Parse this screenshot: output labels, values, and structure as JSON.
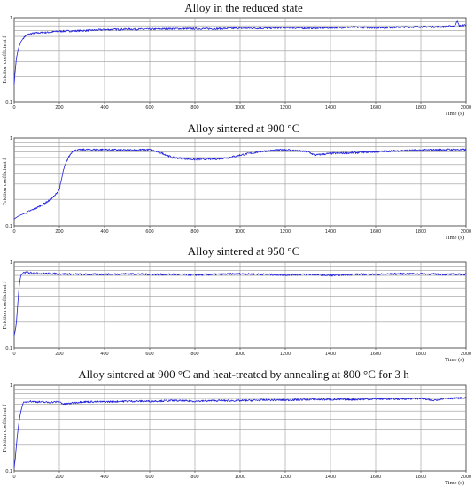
{
  "chart_data": [
    {
      "type": "line",
      "title": "Alloy in the reduced state",
      "xlabel": "Time (s)",
      "ylabel": "Friction coefficient f",
      "xlim": [
        0,
        2000
      ],
      "ylim": [
        0.1,
        1
      ],
      "yscale": "log",
      "xticks": [
        "0",
        "200",
        "400",
        "600",
        "800",
        "1000",
        "1200",
        "1400",
        "1600",
        "1800",
        "2000"
      ],
      "yticks": [
        "0.1",
        "1"
      ],
      "grid": true,
      "color": "#1f1fdc",
      "series": [
        {
          "x": [
            0,
            5,
            10,
            20,
            30,
            40,
            50,
            60,
            80,
            100,
            150,
            200,
            300,
            400,
            500,
            600,
            700,
            800,
            900,
            1000,
            1100,
            1200,
            1300,
            1400,
            1500,
            1600,
            1700,
            1800,
            1900,
            1950,
            1960,
            1970,
            2000
          ],
          "y": [
            0.16,
            0.24,
            0.33,
            0.44,
            0.52,
            0.57,
            0.61,
            0.63,
            0.65,
            0.66,
            0.67,
            0.69,
            0.7,
            0.72,
            0.73,
            0.73,
            0.74,
            0.74,
            0.74,
            0.75,
            0.75,
            0.76,
            0.75,
            0.76,
            0.77,
            0.76,
            0.77,
            0.78,
            0.78,
            0.8,
            0.92,
            0.8,
            0.82
          ]
        }
      ]
    },
    {
      "type": "line",
      "title": "Alloy sintered at 900 °C",
      "xlabel": "Time (s)",
      "ylabel": "Friction coefficient f",
      "xlim": [
        0,
        2000
      ],
      "ylim": [
        0.1,
        1
      ],
      "yscale": "log",
      "xticks": [
        "0",
        "200",
        "400",
        "600",
        "800",
        "1000",
        "1200",
        "1400",
        "1600",
        "1800",
        "2000"
      ],
      "yticks": [
        "0.1",
        "1"
      ],
      "grid": true,
      "color": "#1f1fdc",
      "series": [
        {
          "x": [
            0,
            20,
            50,
            100,
            150,
            180,
            200,
            210,
            220,
            230,
            240,
            260,
            300,
            400,
            500,
            600,
            650,
            700,
            800,
            900,
            950,
            1000,
            1100,
            1200,
            1300,
            1330,
            1400,
            1500,
            1600,
            1700,
            1800,
            1900,
            2000
          ],
          "y": [
            0.12,
            0.13,
            0.14,
            0.16,
            0.19,
            0.22,
            0.26,
            0.34,
            0.45,
            0.52,
            0.6,
            0.72,
            0.74,
            0.74,
            0.73,
            0.74,
            0.68,
            0.6,
            0.57,
            0.58,
            0.6,
            0.64,
            0.71,
            0.74,
            0.7,
            0.64,
            0.67,
            0.68,
            0.7,
            0.72,
            0.73,
            0.74,
            0.74
          ]
        }
      ]
    },
    {
      "type": "line",
      "title": "Alloy sintered at 950 °C",
      "xlabel": "Time (s)",
      "ylabel": "Friction coefficient f",
      "xlim": [
        0,
        2000
      ],
      "ylim": [
        0.1,
        1
      ],
      "yscale": "log",
      "xticks": [
        "0",
        "200",
        "400",
        "600",
        "800",
        "1000",
        "1200",
        "1400",
        "1600",
        "1800",
        "2000"
      ],
      "yticks": [
        "0.1",
        "1"
      ],
      "grid": true,
      "color": "#1f1fdc",
      "series": [
        {
          "x": [
            0,
            5,
            10,
            15,
            20,
            25,
            30,
            40,
            60,
            100,
            200,
            300,
            400,
            500,
            600,
            700,
            800,
            900,
            1000,
            1100,
            1200,
            1300,
            1400,
            1500,
            1600,
            1700,
            1800,
            1900,
            2000
          ],
          "y": [
            0.14,
            0.16,
            0.2,
            0.3,
            0.45,
            0.6,
            0.7,
            0.75,
            0.76,
            0.74,
            0.73,
            0.72,
            0.72,
            0.73,
            0.72,
            0.72,
            0.71,
            0.72,
            0.73,
            0.72,
            0.71,
            0.72,
            0.7,
            0.72,
            0.72,
            0.73,
            0.73,
            0.72,
            0.72
          ]
        }
      ]
    },
    {
      "type": "line",
      "title": "Alloy sintered at 900 °C and heat-treated by annealing at 800 °C for 3 h",
      "xlabel": "Time (s)",
      "ylabel": "Friction coefficient f",
      "xlim": [
        0,
        2000
      ],
      "ylim": [
        0.1,
        1
      ],
      "yscale": "log",
      "xticks": [
        "0",
        "200",
        "400",
        "600",
        "800",
        "1000",
        "1200",
        "1400",
        "1600",
        "1800",
        "2000"
      ],
      "yticks": [
        "0.1",
        "1"
      ],
      "grid": true,
      "color": "#1f1fdc",
      "series": [
        {
          "x": [
            0,
            5,
            10,
            20,
            30,
            40,
            60,
            100,
            150,
            200,
            220,
            300,
            400,
            500,
            600,
            700,
            800,
            900,
            1000,
            1100,
            1200,
            1300,
            1400,
            1500,
            1600,
            1700,
            1800,
            1850,
            1900,
            2000
          ],
          "y": [
            0.11,
            0.14,
            0.2,
            0.35,
            0.5,
            0.62,
            0.65,
            0.64,
            0.63,
            0.64,
            0.6,
            0.64,
            0.64,
            0.65,
            0.65,
            0.66,
            0.65,
            0.66,
            0.66,
            0.67,
            0.67,
            0.68,
            0.68,
            0.68,
            0.69,
            0.69,
            0.7,
            0.66,
            0.7,
            0.71
          ]
        }
      ]
    }
  ]
}
